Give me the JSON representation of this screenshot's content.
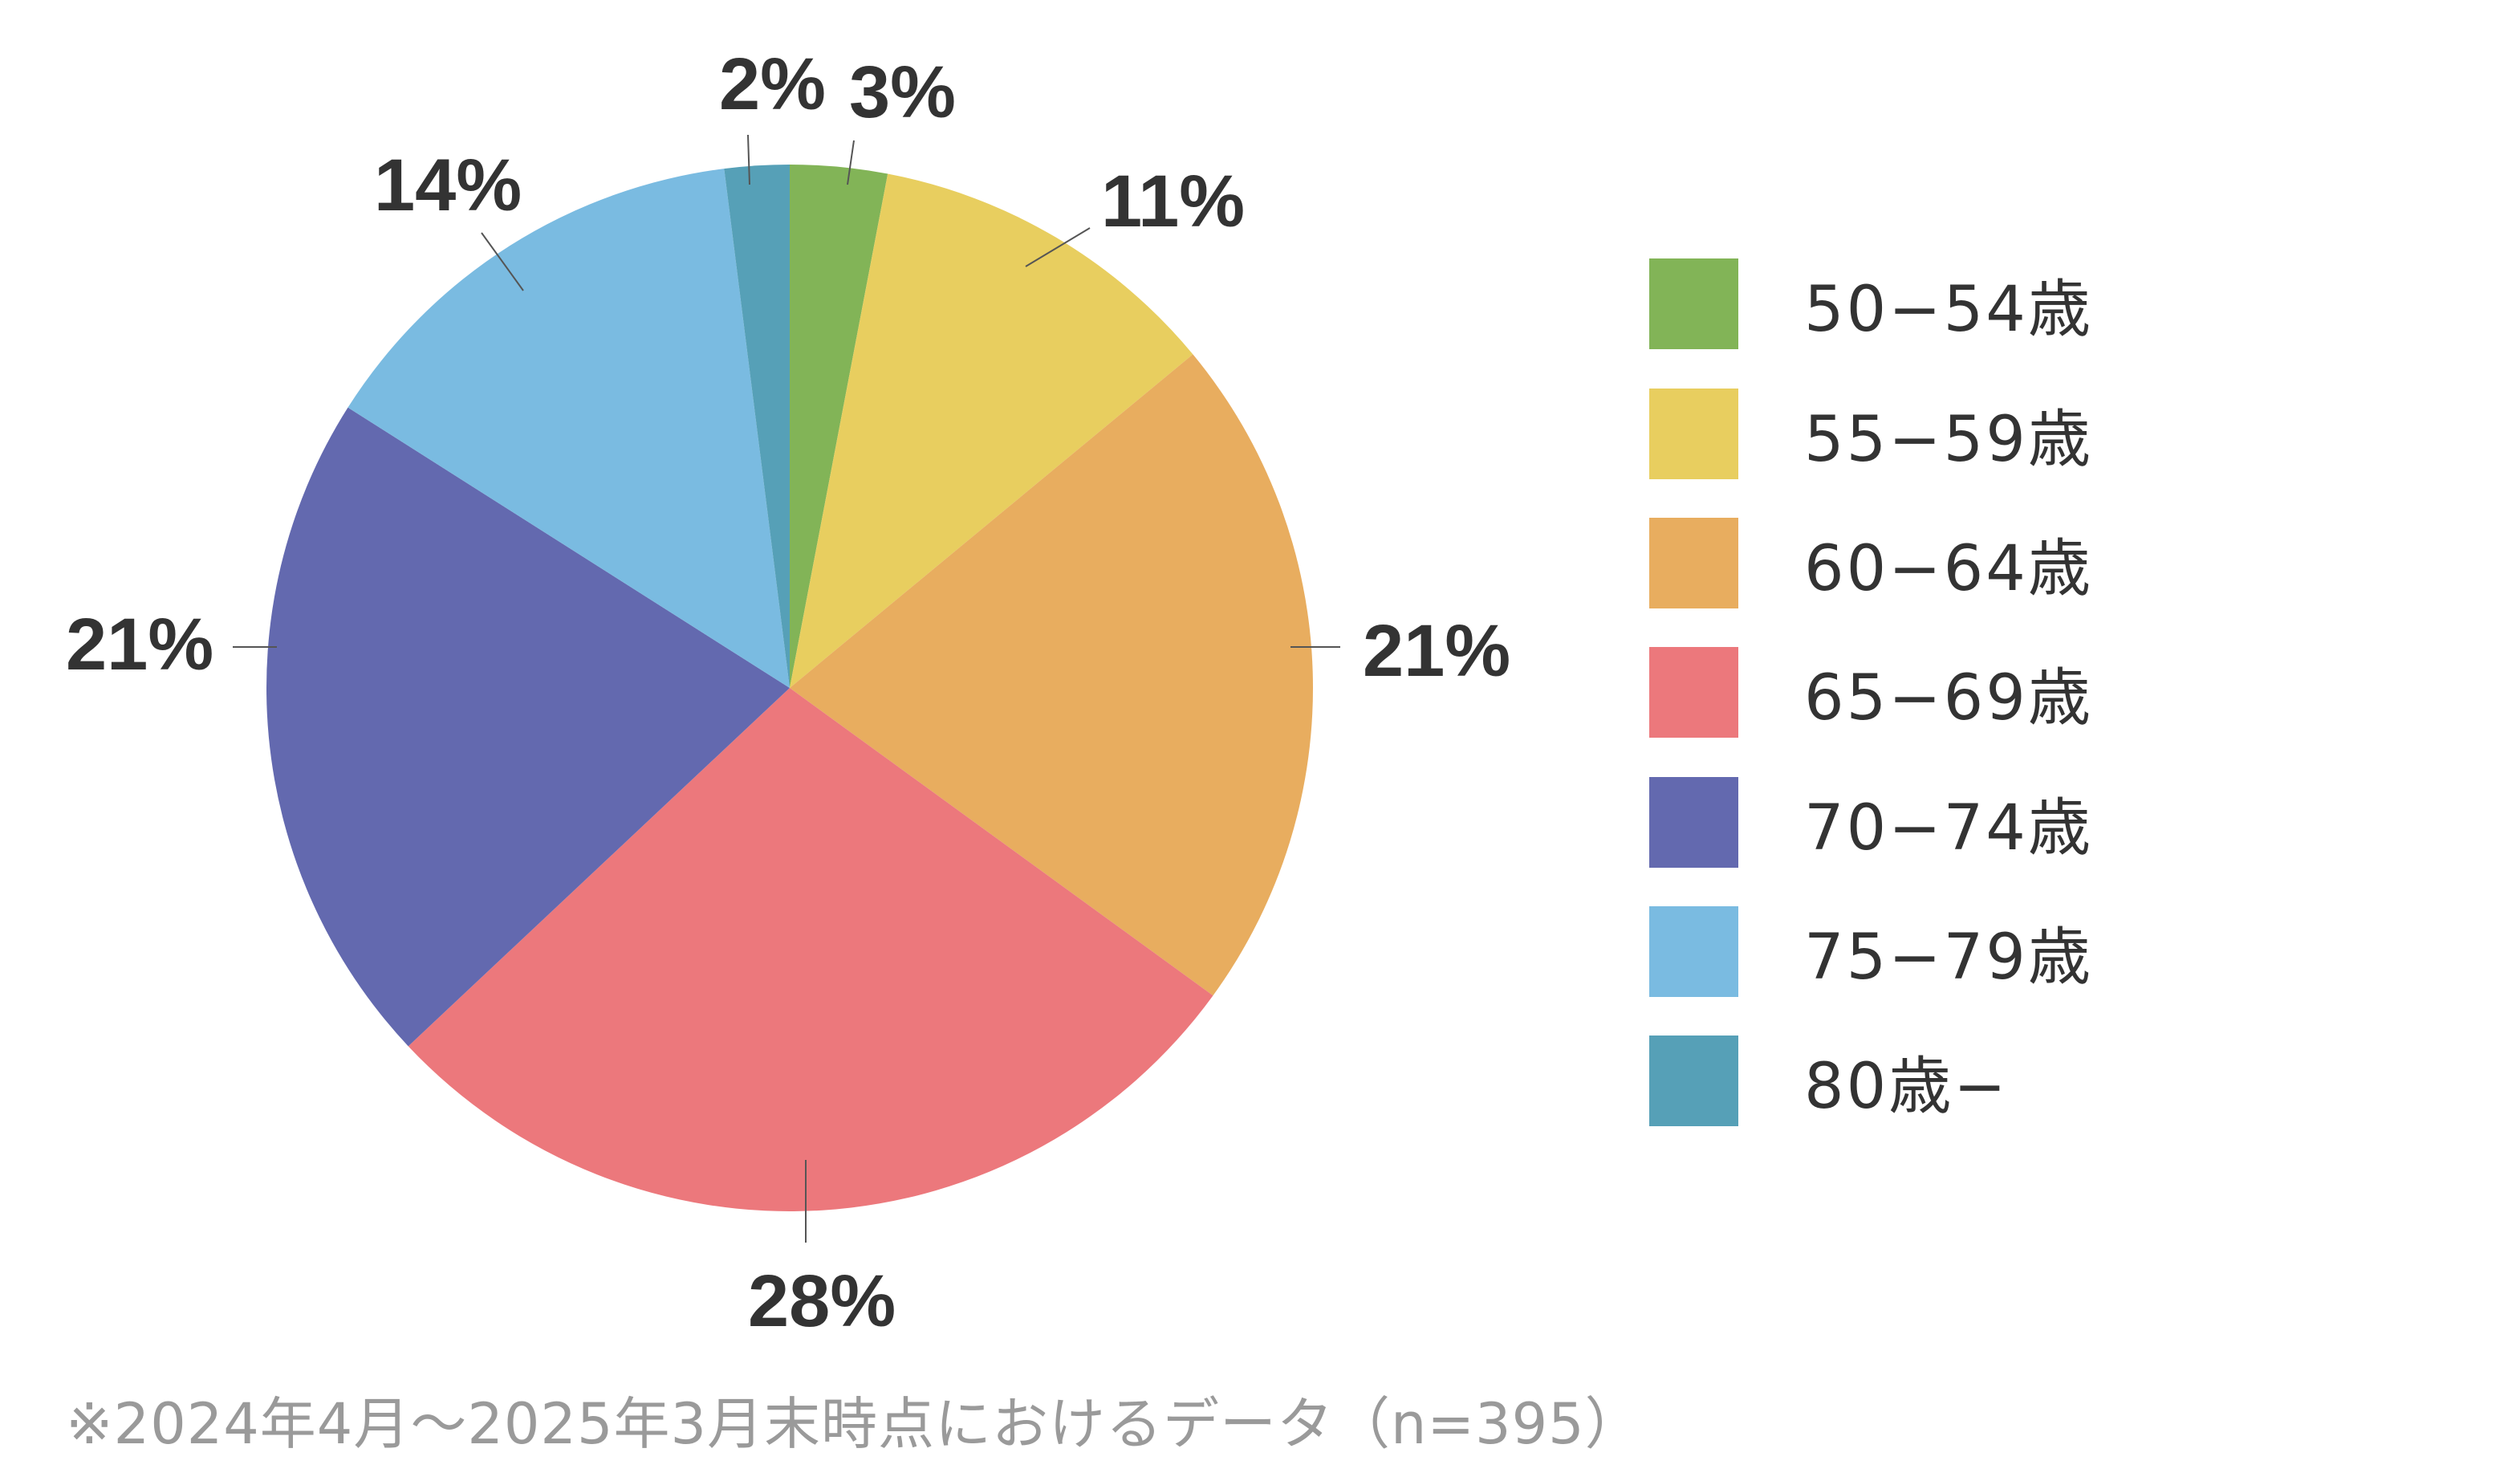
{
  "chart_data": {
    "type": "pie",
    "title": "",
    "start_angle": "12 o'clock",
    "direction": "clockwise",
    "categories": [
      "50-54歳",
      "55-59歳",
      "60-64歳",
      "65-69歳",
      "70-74歳",
      "75-79歳",
      "80歳-"
    ],
    "values": [
      3,
      11,
      21,
      28,
      21,
      14,
      2
    ],
    "unit": "%",
    "data_labels": [
      "3%",
      "11%",
      "21%",
      "28%",
      "21%",
      "14%",
      "2%"
    ],
    "colors": [
      "#82b457",
      "#e8ce5f",
      "#e8ad5f",
      "#ec787c",
      "#6369af",
      "#7abbe1",
      "#56a0b7"
    ],
    "legend_position": "right",
    "n": 395,
    "note": "※2024年4月〜2025年3月末時点におけるデータ（n=395）"
  },
  "legend": {
    "items": [
      {
        "label": "50−54歳",
        "color": "#82b457"
      },
      {
        "label": "55−59歳",
        "color": "#e8ce5f"
      },
      {
        "label": "60−64歳",
        "color": "#e8ad5f"
      },
      {
        "label": "65−69歳",
        "color": "#ec787c"
      },
      {
        "label": "70−74歳",
        "color": "#6369af"
      },
      {
        "label": "75−79歳",
        "color": "#7abbe1"
      },
      {
        "label": "80歳−",
        "color": "#56a0b7"
      }
    ]
  },
  "labels": {
    "green": "3%",
    "yellow": "11%",
    "orange": "21%",
    "pink": "28%",
    "indigo": "21%",
    "lightblue": "14%",
    "teal": "2%"
  },
  "footnote": "※2024年4月〜2025年3月末時点におけるデータ（n=395）"
}
